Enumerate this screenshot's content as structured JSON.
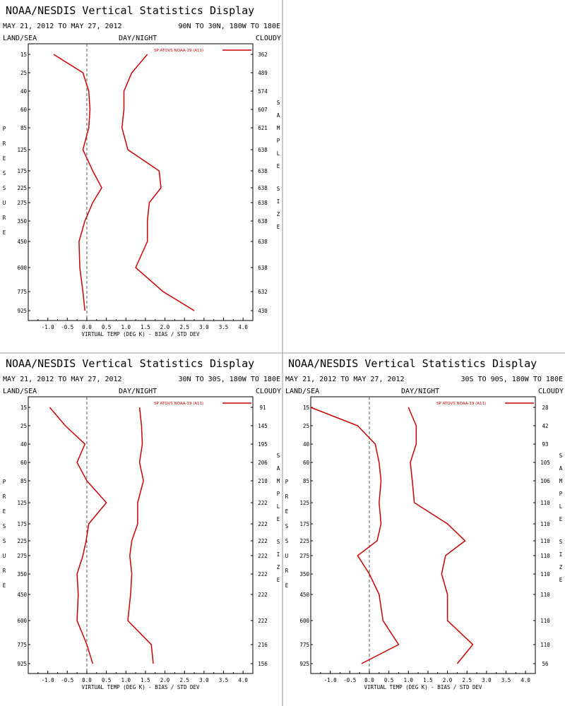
{
  "chart_data": [
    {
      "type": "line",
      "title": "NOAA/NESDIS Vertical Statistics Display",
      "date_range": "MAY 21, 2012 TO MAY 27, 2012",
      "region": "90N TO 30N, 180W TO 180E",
      "land_sea": "LAND/SEA",
      "day_night": "DAY/NIGHT",
      "cloudy": "CLOUDY",
      "ylabel": "PRESSURE",
      "right_label": "SAMPLE SIZE",
      "xlabel": "VIRTUAL TEMP (DEG K) - BIAS / STD DEV",
      "xlim": [
        -1.5,
        4.25
      ],
      "x_ticks": [
        "-1.0",
        "-0.5",
        "0.0",
        "0.5",
        "1.0",
        "1.5",
        "2.0",
        "2.5",
        "3.0",
        "3.5",
        "4.0"
      ],
      "pressure_levels": [
        "15",
        "25",
        "40",
        "60",
        "85",
        "125",
        "175",
        "225",
        "275",
        "350",
        "450",
        "600",
        "775",
        "925"
      ],
      "sample_size": [
        "362",
        "489",
        "574",
        "607",
        "621",
        "638",
        "638",
        "638",
        "638",
        "638",
        "638",
        "638",
        "632",
        "430"
      ],
      "series": [
        {
          "name": "SP ATOVS NOAA-19 (A11)",
          "role": "bias",
          "values": [
            -0.85,
            -0.1,
            0.05,
            0.08,
            0.05,
            -0.1,
            0.15,
            0.38,
            0.15,
            -0.05,
            -0.2,
            -0.18,
            -0.1,
            -0.05
          ]
        },
        {
          "name": "SP ATOVS NOAA-19 (A11)",
          "role": "std_dev",
          "values": [
            1.55,
            1.15,
            0.95,
            0.95,
            0.9,
            1.05,
            1.85,
            1.9,
            1.6,
            1.55,
            1.55,
            1.25,
            1.95,
            2.75
          ]
        }
      ],
      "color": "#cc0000"
    },
    {
      "type": "line",
      "title": "NOAA/NESDIS Vertical Statistics Display",
      "date_range": "MAY 21, 2012 TO MAY 27, 2012",
      "region": "30N TO 30S, 180W TO 180E",
      "land_sea": "LAND/SEA",
      "day_night": "DAY/NIGHT",
      "cloudy": "CLOUDY",
      "ylabel": "PRESSURE",
      "right_label": "SAMPLE SIZE",
      "xlabel": "VIRTUAL TEMP (DEG K) - BIAS / STD DEV",
      "xlim": [
        -1.5,
        4.25
      ],
      "x_ticks": [
        "-1.0",
        "-0.5",
        "0.0",
        "0.5",
        "1.0",
        "1.5",
        "2.0",
        "2.5",
        "3.0",
        "3.5",
        "4.0"
      ],
      "pressure_levels": [
        "15",
        "25",
        "40",
        "60",
        "85",
        "125",
        "175",
        "225",
        "275",
        "350",
        "450",
        "600",
        "775",
        "925"
      ],
      "sample_size": [
        "91",
        "145",
        "195",
        "206",
        "210",
        "222",
        "222",
        "222",
        "222",
        "222",
        "222",
        "222",
        "216",
        "156"
      ],
      "series": [
        {
          "name": "SP ATOVS NOAA-19 (A11)",
          "role": "bias",
          "values": [
            -0.95,
            -0.55,
            -0.05,
            -0.25,
            0.0,
            0.5,
            0.05,
            -0.02,
            -0.1,
            -0.25,
            -0.22,
            -0.25,
            0.0,
            0.15
          ]
        },
        {
          "name": "SP ATOVS NOAA-19 (A11)",
          "role": "std_dev",
          "values": [
            1.35,
            1.4,
            1.42,
            1.35,
            1.45,
            1.3,
            1.3,
            1.15,
            1.1,
            1.15,
            1.12,
            1.05,
            1.65,
            1.7
          ]
        }
      ],
      "color": "#cc0000"
    },
    {
      "type": "line",
      "title": "NOAA/NESDIS Vertical Statistics Display",
      "date_range": "MAY 21, 2012 TO MAY 27, 2012",
      "region": "30S TO 90S, 180W TO 180E",
      "land_sea": "LAND/SEA",
      "day_night": "DAY/NIGHT",
      "cloudy": "CLOUDY",
      "ylabel": "PRESSURE",
      "right_label": "SAMPLE SIZE",
      "xlabel": "VIRTUAL TEMP (DEG K) - BIAS / STD DEV",
      "xlim": [
        -1.5,
        4.25
      ],
      "x_ticks": [
        "-1.0",
        "-0.5",
        "0.0",
        "0.5",
        "1.0",
        "1.5",
        "2.0",
        "2.5",
        "3.0",
        "3.5",
        "4.0"
      ],
      "pressure_levels": [
        "15",
        "25",
        "40",
        "60",
        "85",
        "125",
        "175",
        "225",
        "275",
        "350",
        "450",
        "600",
        "775",
        "925"
      ],
      "sample_size": [
        "28",
        "42",
        "93",
        "105",
        "106",
        "110",
        "110",
        "110",
        "110",
        "110",
        "110",
        "110",
        "110",
        "56"
      ],
      "series": [
        {
          "name": "SP ATOVS NOAA-19 (A11)",
          "role": "bias",
          "values": [
            -1.5,
            -0.3,
            0.15,
            0.25,
            0.3,
            0.25,
            0.3,
            0.2,
            -0.3,
            0.0,
            0.25,
            0.35,
            0.75,
            -0.2
          ]
        },
        {
          "name": "SP ATOVS NOAA-19 (A11)",
          "role": "std_dev",
          "values": [
            1.0,
            1.2,
            1.2,
            1.05,
            1.1,
            1.15,
            2.0,
            2.45,
            1.95,
            1.85,
            2.0,
            2.0,
            2.65,
            2.25
          ]
        }
      ],
      "color": "#cc0000"
    }
  ]
}
